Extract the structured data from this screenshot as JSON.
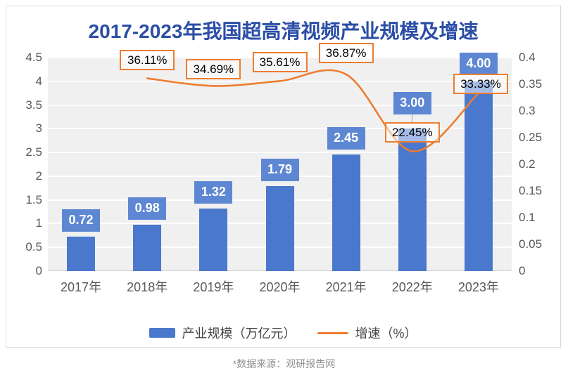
{
  "title": "2017-2023年我国超高清视频产业规模及增速",
  "source_note": "*数据来源：观研报告网",
  "legend": {
    "bar_label": "产业规模（万亿元）",
    "line_label": "增速（%）"
  },
  "colors": {
    "bar": "#4a78cc",
    "bar_label_bg": "#5e87d3",
    "line": "#ED7D31",
    "pct_box_border": "#ED7D31",
    "title": "#2b4ea6",
    "axis_text": "#595959",
    "plot_background": "#f0f0f0"
  },
  "chart_data": {
    "type": "bar",
    "subtype": "bar+line combo, dual axis",
    "title": "2017-2023年我国超高清视频产业规模及增速",
    "categories": [
      "2017年",
      "2018年",
      "2019年",
      "2020年",
      "2021年",
      "2022年",
      "2023年"
    ],
    "series": [
      {
        "name": "产业规模（万亿元）",
        "type": "bar",
        "axis": "left",
        "values": [
          0.72,
          0.98,
          1.32,
          1.79,
          2.45,
          3.0,
          4.0
        ],
        "labels": [
          "0.72",
          "0.98",
          "1.32",
          "1.79",
          "2.45",
          "3.00",
          "4.00"
        ]
      },
      {
        "name": "增速（%）",
        "type": "line",
        "axis": "right",
        "values": [
          null,
          0.3611,
          0.3469,
          0.3561,
          0.3687,
          0.2245,
          0.3333
        ],
        "labels": [
          "",
          "36.11%",
          "34.69%",
          "35.61%",
          "36.87%",
          "22.45%",
          "33.33%"
        ]
      }
    ],
    "left_axis": {
      "min": 0,
      "max": 4.5,
      "step": 0.5,
      "ticks": [
        "4.5",
        "4",
        "3.5",
        "3",
        "2.5",
        "2",
        "1.5",
        "1",
        "0.5",
        "0"
      ]
    },
    "right_axis": {
      "min": 0,
      "max": 0.4,
      "step": 0.05,
      "ticks": [
        "0.4",
        "0.35",
        "0.3",
        "0.25",
        "0.2",
        "0.15",
        "0.1",
        "0.05",
        "0"
      ]
    },
    "grid": "horizontal white gridlines on light gray plot area",
    "legend_position": "bottom center",
    "line_smooth": true
  }
}
